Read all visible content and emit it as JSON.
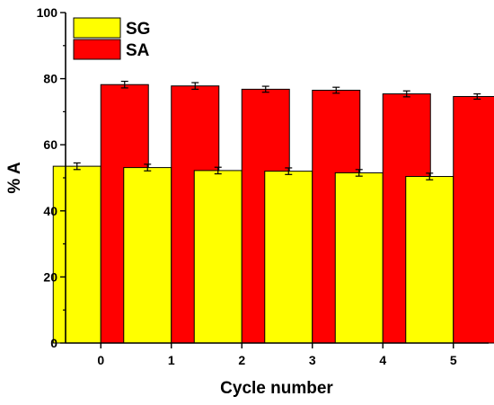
{
  "chart_data": {
    "type": "bar",
    "title": "",
    "xlabel": "Cycle number",
    "ylabel": "% A",
    "categories": [
      "0",
      "1",
      "2",
      "3",
      "4",
      "5"
    ],
    "series": [
      {
        "name": "SG",
        "color": "#ffff00",
        "values": [
          53.5,
          53.1,
          52.2,
          52.0,
          51.5,
          50.4
        ],
        "errors": [
          1.0,
          1.0,
          1.0,
          1.0,
          1.0,
          1.0
        ]
      },
      {
        "name": "SA",
        "color": "#ff0000",
        "values": [
          78.2,
          77.8,
          76.8,
          76.5,
          75.4,
          74.6
        ],
        "errors": [
          1.0,
          1.0,
          0.9,
          0.9,
          0.9,
          0.8
        ]
      }
    ],
    "ylim": [
      0,
      100
    ],
    "yticks": [
      "0",
      "20",
      "40",
      "60",
      "80",
      "100"
    ],
    "grid": false,
    "legend_position": "top-left"
  }
}
